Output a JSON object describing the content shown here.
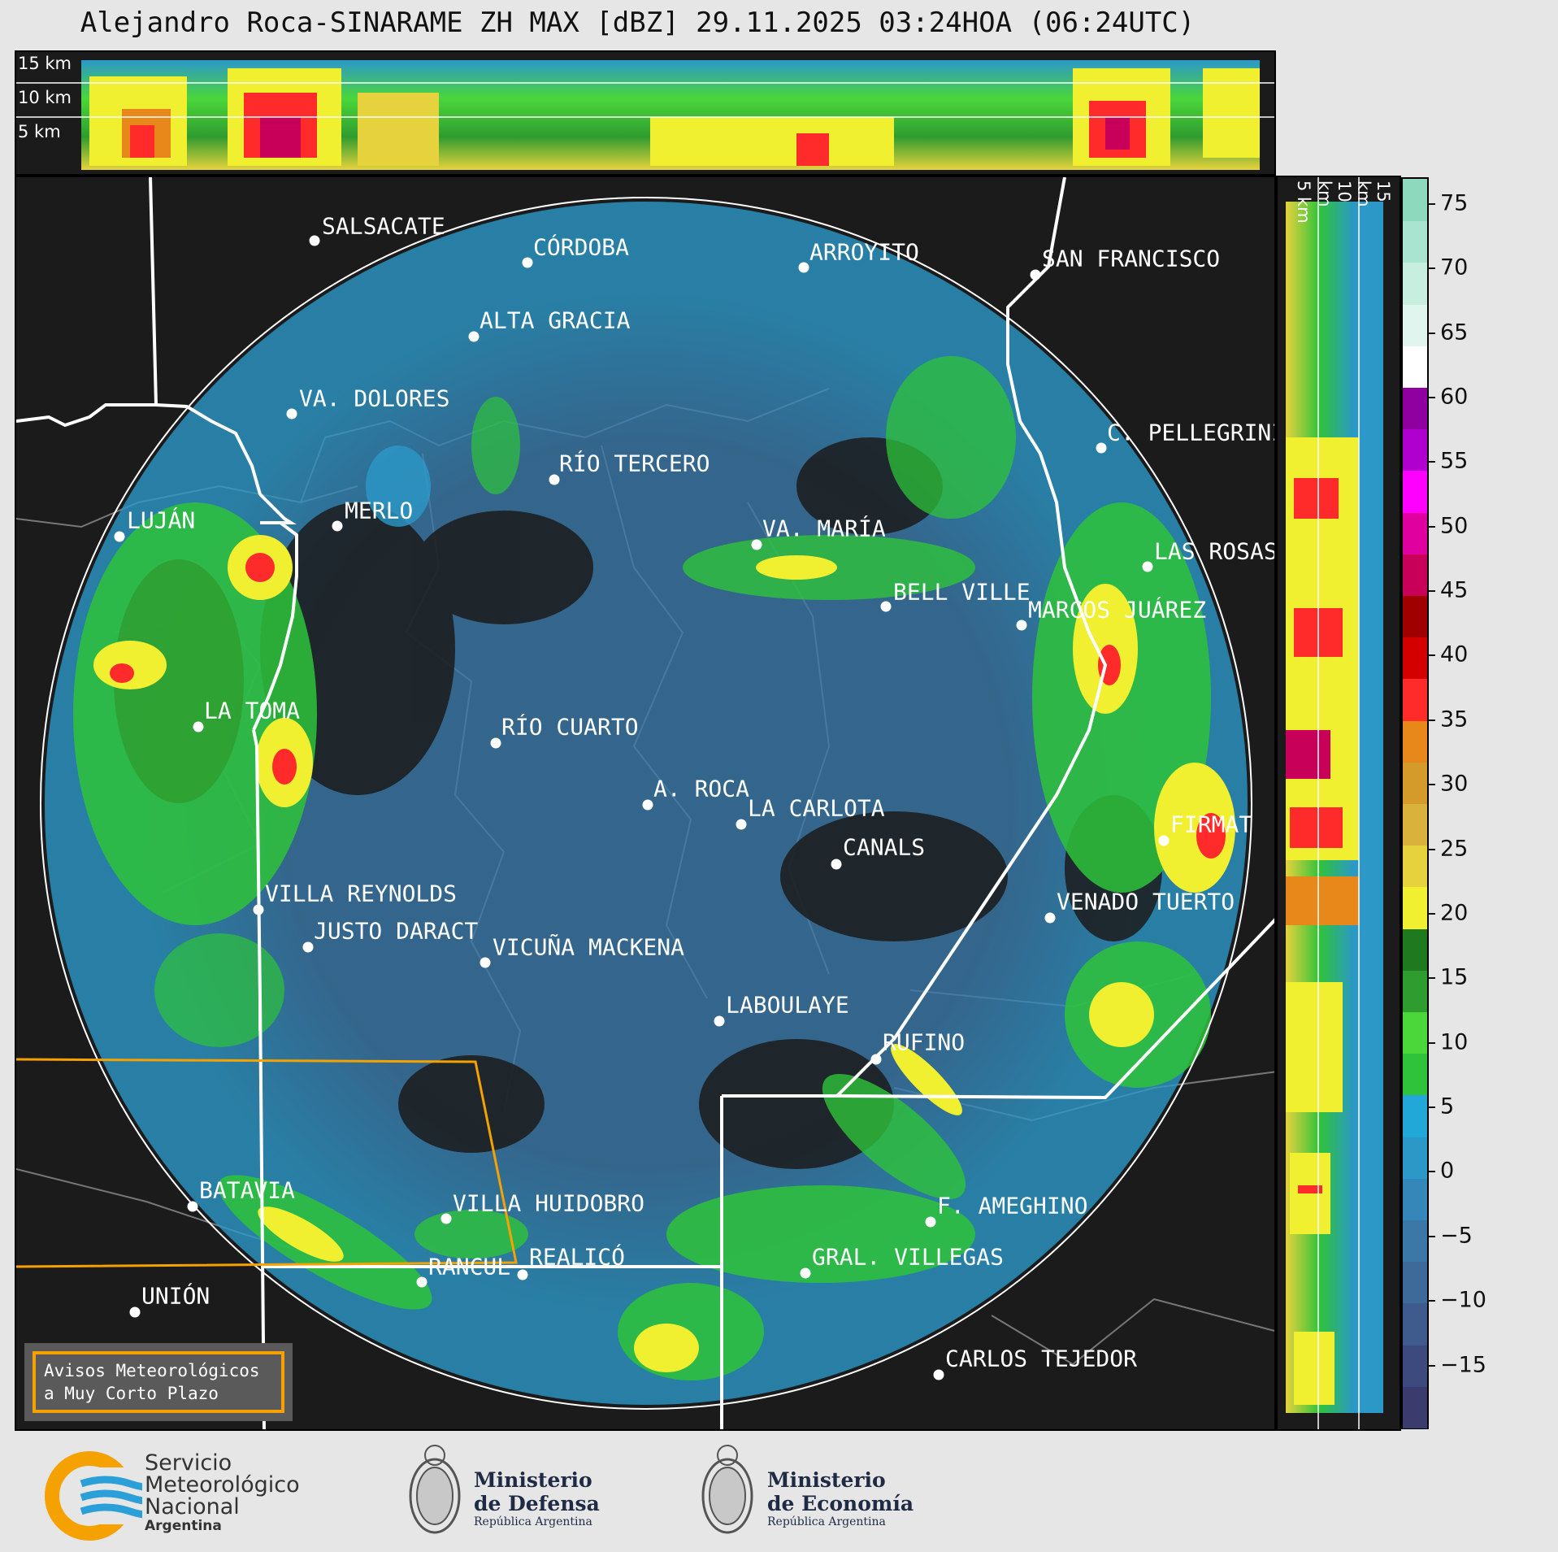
{
  "title": "Alejandro Roca-SINARAME ZH MAX [dBZ] 29.11.2025 03:24HOA (06:24UTC)",
  "top_panel": {
    "km_labels": [
      "15 km",
      "10 km",
      "5 km"
    ]
  },
  "side_panel": {
    "km_labels": [
      "5 km",
      "10 km",
      "15 km"
    ]
  },
  "cities": [
    {
      "name": "SALSACATE"
    },
    {
      "name": "CÓRDOBA"
    },
    {
      "name": "ARROYITO"
    },
    {
      "name": "SAN FRANCISCO"
    },
    {
      "name": "ALTA GRACIA"
    },
    {
      "name": "VA. DOLORES"
    },
    {
      "name": "C. PELLEGRINI"
    },
    {
      "name": "RÍO TERCERO"
    },
    {
      "name": "LUJÁN"
    },
    {
      "name": "MERLO"
    },
    {
      "name": "VA. MARÍA"
    },
    {
      "name": "LAS ROSAS"
    },
    {
      "name": "BELL VILLE"
    },
    {
      "name": "MARCOS JUÁREZ"
    },
    {
      "name": "LA TOMA"
    },
    {
      "name": "RÍO CUARTO"
    },
    {
      "name": "A. ROCA"
    },
    {
      "name": "LA CARLOTA"
    },
    {
      "name": "FIRMAT"
    },
    {
      "name": "CANALS"
    },
    {
      "name": "VILLA REYNOLDS"
    },
    {
      "name": "VENADO TUERTO"
    },
    {
      "name": "JUSTO DARACT"
    },
    {
      "name": "VICUÑA MACKENA"
    },
    {
      "name": "LABOULAYE"
    },
    {
      "name": "RUFINO"
    },
    {
      "name": "BATAVIA"
    },
    {
      "name": "VILLA HUIDOBRO"
    },
    {
      "name": "F. AMEGHINO"
    },
    {
      "name": "RANCUL"
    },
    {
      "name": "REALICÓ"
    },
    {
      "name": "GRAL. VILLEGAS"
    },
    {
      "name": "UNIÓN"
    },
    {
      "name": "CARLOS TEJEDOR"
    }
  ],
  "avisos": {
    "line1": "Avisos Meteorológicos",
    "line2": "a Muy Corto Plazo"
  },
  "colorbar": {
    "unit": "dBZ",
    "ticks": [
      "75",
      "70",
      "65",
      "60",
      "55",
      "50",
      "45",
      "40",
      "35",
      "30",
      "25",
      "20",
      "15",
      "10",
      "5",
      "0",
      "−5",
      "−10",
      "−15"
    ],
    "tick_values": [
      75,
      70,
      65,
      60,
      55,
      50,
      45,
      40,
      35,
      30,
      25,
      20,
      15,
      10,
      5,
      0,
      -5,
      -10,
      -15
    ],
    "range": [
      -20,
      77
    ],
    "colors": [
      "#3b3b6e",
      "#3d4a7e",
      "#3f5a8c",
      "#3e6a9a",
      "#3b78a8",
      "#3487b8",
      "#2c98c8",
      "#22a8d8",
      "#2ec33a",
      "#4bd63a",
      "#2f9c2f",
      "#1f7a1f",
      "#f0f030",
      "#e6d23c",
      "#d9b23c",
      "#d49a2a",
      "#e8871a",
      "#ff2a2a",
      "#d40000",
      "#a00000",
      "#c8005a",
      "#e000a0",
      "#ff00ff",
      "#b000d0",
      "#9000a0",
      "#ffffff",
      "#e0f5ee",
      "#c8eedf",
      "#a8e4cf",
      "#8cd9bd"
    ]
  },
  "logos": {
    "smn": {
      "line1": "Servicio",
      "line2": "Meteorológico",
      "line3": "Nacional",
      "line4": "Argentina"
    },
    "defensa": {
      "line1": "Ministerio",
      "line2": "de Defensa",
      "line3": "República Argentina"
    },
    "economia": {
      "line1": "Ministerio",
      "line2": "de Economía",
      "line3": "República Argentina"
    }
  }
}
